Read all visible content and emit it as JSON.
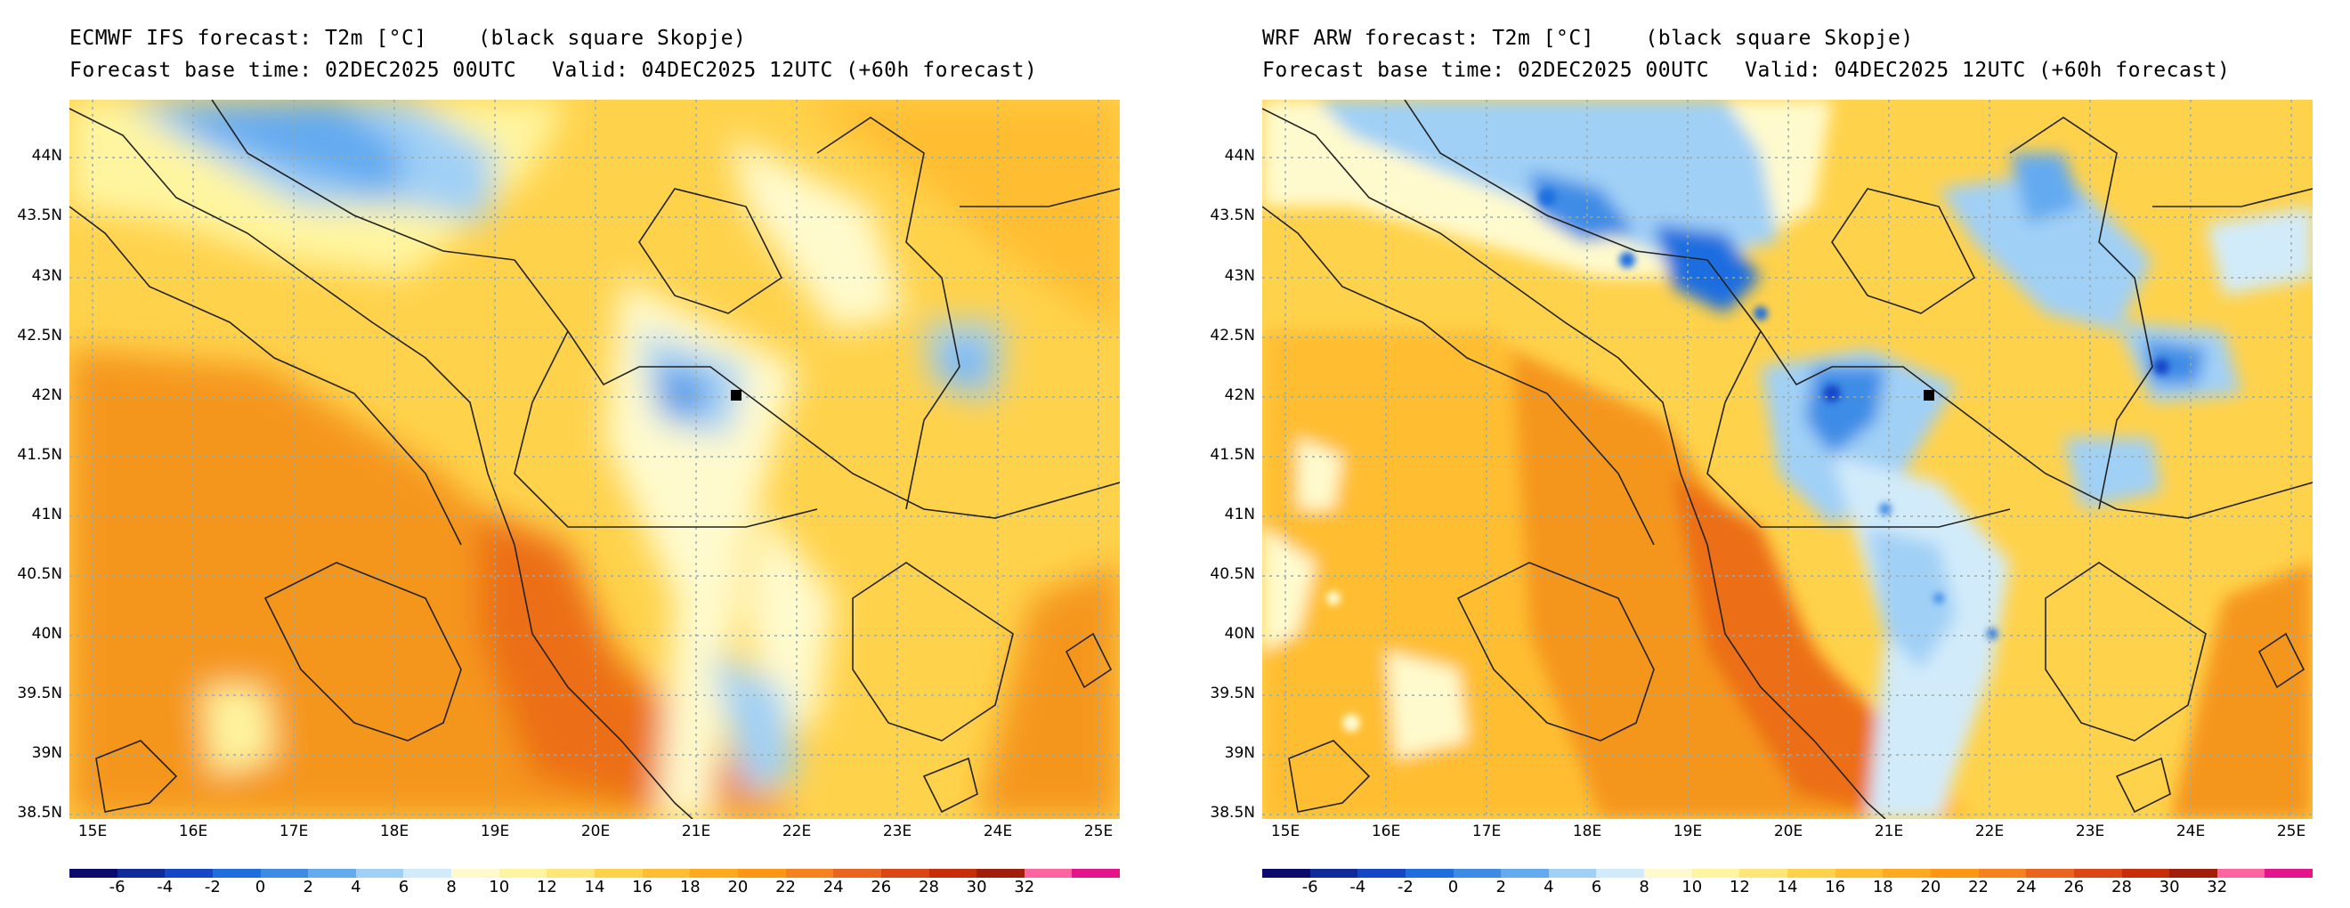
{
  "panels": [
    {
      "model": "ECMWF IFS",
      "title_line1": "ECMWF IFS forecast: T2m [°C]    (black square Skopje)",
      "base_time": "Forecast base time: 02DEC2025 00UTC",
      "valid_time": "Valid: 04DEC2025 12UTC (+60h forecast)"
    },
    {
      "model": "WRF ARW",
      "title_line1": "WRF ARW forecast: T2m [°C]    (black square Skopje)",
      "base_time": "Forecast base time: 02DEC2025 00UTC",
      "valid_time": "Valid: 04DEC2025 12UTC (+60h forecast)"
    }
  ],
  "map": {
    "lat_labels": [
      "44N",
      "43.5N",
      "43N",
      "42.5N",
      "42N",
      "41.5N",
      "41N",
      "40.5N",
      "40N",
      "39.5N",
      "39N",
      "38.5N"
    ],
    "lon_labels": [
      "15E",
      "16E",
      "17E",
      "18E",
      "19E",
      "20E",
      "21E",
      "22E",
      "23E",
      "24E",
      "25E"
    ],
    "marker_city": "Skopje",
    "marker_lat": 42.0,
    "marker_lon": 21.43
  },
  "colorbar": {
    "labels": [
      "-6",
      "-4",
      "-2",
      "0",
      "2",
      "4",
      "6",
      "8",
      "10",
      "12",
      "14",
      "16",
      "18",
      "20",
      "22",
      "24",
      "26",
      "28",
      "30",
      "32"
    ],
    "colors": [
      "#0a0a6e",
      "#0f2a9a",
      "#1446c8",
      "#1e6ee0",
      "#3c8ce6",
      "#64aaf0",
      "#a0d0f6",
      "#d2ebfa",
      "#fffacd",
      "#fff5a0",
      "#ffe678",
      "#ffd24b",
      "#ffbe32",
      "#ffaa1e",
      "#ff9614",
      "#f5821e",
      "#eb641e",
      "#dc4614",
      "#c82d0a",
      "#a01e0a",
      "#ff64a0",
      "#e6148c"
    ]
  },
  "colors": {
    "warm": "#fbb41e",
    "hot": "#f5961e",
    "sea_hot": "#ec6e16",
    "cold": "#64aaf0",
    "cool": "#a0d0f6",
    "mild": "#fffacd",
    "pale": "#fff5a0"
  }
}
